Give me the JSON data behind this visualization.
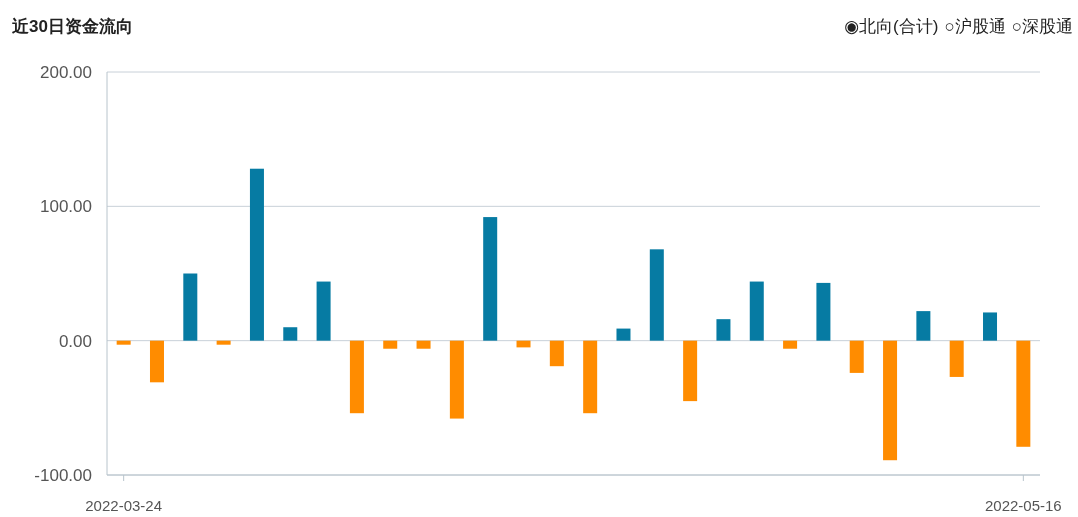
{
  "chart_data": {
    "type": "bar",
    "title": "近30日资金流向",
    "annotations": [
      "◉北向(合计)",
      "○沪股通",
      "○深股通"
    ],
    "categories": [
      "2022-03-24",
      null,
      null,
      null,
      null,
      null,
      null,
      null,
      null,
      null,
      null,
      null,
      null,
      null,
      null,
      null,
      null,
      null,
      null,
      null,
      null,
      null,
      null,
      null,
      null,
      null,
      null,
      "2022-05-16"
    ],
    "values": [
      -3,
      -31,
      50,
      -3,
      128,
      10,
      44,
      -54,
      -6,
      -6,
      -58,
      92,
      -5,
      -19,
      -54,
      9,
      68,
      -45,
      16,
      44,
      -6,
      43,
      -24,
      -89,
      22,
      -27,
      21,
      -79
    ],
    "colors": [
      "#ff8c00",
      "#ff8c00",
      "#067ba3",
      "#ff8c00",
      "#067ba3",
      "#067ba3",
      "#067ba3",
      "#ff8c00",
      "#ff8c00",
      "#ff8c00",
      "#ff8c00",
      "#067ba3",
      "#ff8c00",
      "#ff8c00",
      "#ff8c00",
      "#067ba3",
      "#067ba3",
      "#ff8c00",
      "#067ba3",
      "#067ba3",
      "#ff8c00",
      "#067ba3",
      "#ff8c00",
      "#ff8c00",
      "#067ba3",
      "#ff8c00",
      "#067ba3",
      "#ff8c00"
    ],
    "ylim": [
      -100,
      200
    ],
    "yticks": [
      {
        "value": -100,
        "label": "-100.00"
      },
      {
        "value": 0,
        "label": "0.00"
      },
      {
        "value": 100,
        "label": "100.00"
      },
      {
        "value": 200,
        "label": "200.00"
      }
    ],
    "grid": "y"
  }
}
